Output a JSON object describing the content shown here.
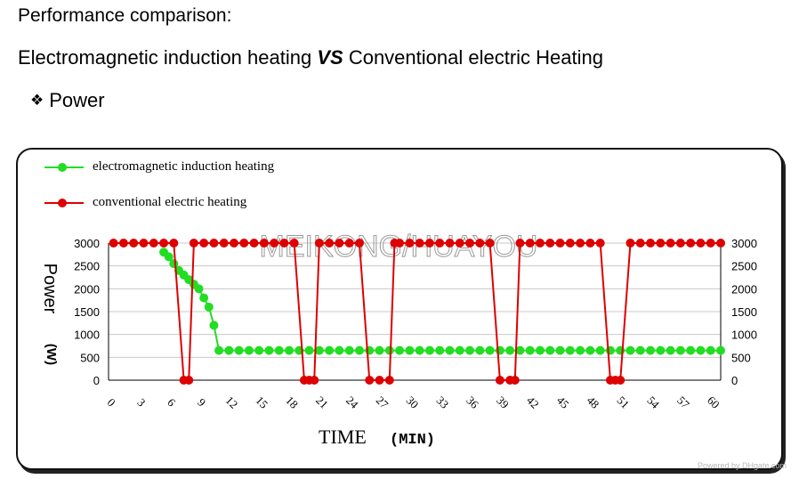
{
  "header": {
    "title": "Performance comparison:",
    "subtitle_left": "Electromagnetic induction heating",
    "subtitle_vs": "VS",
    "subtitle_right": "Conventional electric Heating",
    "bullet_glyph": "❖",
    "bullet_label": "Power"
  },
  "watermark": "MEIKONG/HUAYOU",
  "credit": "Powered by DHgate.com",
  "chart_data": {
    "type": "line",
    "title": "",
    "xlabel": "TIME",
    "xlabel_unit": "(MIN)",
    "ylabel": "Power",
    "ylabel_unit": "(W)",
    "ylim": [
      0,
      3000
    ],
    "xlim": [
      0,
      61
    ],
    "yticks": [
      0,
      500,
      1000,
      1500,
      2000,
      2500,
      3000
    ],
    "xticks": [
      0,
      3,
      6,
      9,
      12,
      15,
      18,
      21,
      24,
      27,
      30,
      33,
      36,
      39,
      42,
      45,
      48,
      51,
      54,
      57,
      60
    ],
    "grid": true,
    "legend_position": "top-left",
    "colors": {
      "electromagnetic induction heating": "#22dd22",
      "conventional electric heating": "#dd0000",
      "axis": "#000000",
      "grid": "#c8c8c8"
    },
    "series": [
      {
        "name": "electromagnetic induction heating",
        "x": [
          5.5,
          6.0,
          6.5,
          7.0,
          7.5,
          8.0,
          8.5,
          9.0,
          9.5,
          10.0,
          10.5,
          11.0,
          12,
          13,
          14,
          15,
          16,
          17,
          18,
          19,
          20,
          21,
          22,
          23,
          24,
          25,
          26,
          27,
          28,
          29,
          30,
          31,
          32,
          33,
          34,
          35,
          36,
          37,
          38,
          39,
          40,
          41,
          42,
          43,
          44,
          45,
          46,
          47,
          48,
          49,
          50,
          51,
          52,
          53,
          54,
          55,
          56,
          57,
          58,
          59,
          60,
          61
        ],
        "values": [
          2800,
          2700,
          2550,
          2400,
          2300,
          2200,
          2100,
          2000,
          1800,
          1600,
          1200,
          650,
          650,
          650,
          650,
          650,
          650,
          650,
          650,
          650,
          650,
          650,
          650,
          650,
          650,
          650,
          650,
          650,
          650,
          650,
          650,
          650,
          650,
          650,
          650,
          650,
          650,
          650,
          650,
          650,
          650,
          650,
          650,
          650,
          650,
          650,
          650,
          650,
          650,
          650,
          650,
          650,
          650,
          650,
          650,
          650,
          650,
          650,
          650,
          650,
          650,
          650
        ]
      },
      {
        "name": "conventional electric heating",
        "x": [
          0.5,
          1.5,
          2.5,
          3.5,
          4.5,
          5.5,
          6.5,
          7.5,
          8.0,
          8.5,
          9.5,
          10.5,
          11.5,
          12.5,
          13.5,
          14.5,
          15.5,
          16.5,
          17.5,
          18.5,
          19.5,
          20.0,
          20.5,
          21.0,
          22.0,
          23.0,
          24.0,
          25.0,
          26.0,
          27.0,
          28.0,
          28.5,
          29.0,
          30.0,
          31.0,
          32.0,
          33.0,
          34.0,
          35.0,
          36.0,
          37.0,
          38.0,
          39.0,
          40.0,
          40.5,
          41.0,
          42.0,
          43.0,
          44.0,
          45.0,
          46.0,
          47.0,
          48.0,
          49.0,
          50.0,
          50.5,
          51.0,
          52.0,
          53.0,
          54.0,
          55.0,
          56.0,
          57.0,
          58.0,
          59.0,
          60.0,
          61.0
        ],
        "values": [
          3000,
          3000,
          3000,
          3000,
          3000,
          3000,
          3000,
          0,
          0,
          3000,
          3000,
          3000,
          3000,
          3000,
          3000,
          3000,
          3000,
          3000,
          3000,
          3000,
          0,
          0,
          0,
          3000,
          3000,
          3000,
          3000,
          3000,
          0,
          0,
          0,
          3000,
          3000,
          3000,
          3000,
          3000,
          3000,
          3000,
          3000,
          3000,
          3000,
          3000,
          0,
          0,
          0,
          3000,
          3000,
          3000,
          3000,
          3000,
          3000,
          3000,
          3000,
          3000,
          0,
          0,
          0,
          3000,
          3000,
          3000,
          3000,
          3000,
          3000,
          3000,
          3000,
          3000,
          3000
        ]
      }
    ]
  }
}
